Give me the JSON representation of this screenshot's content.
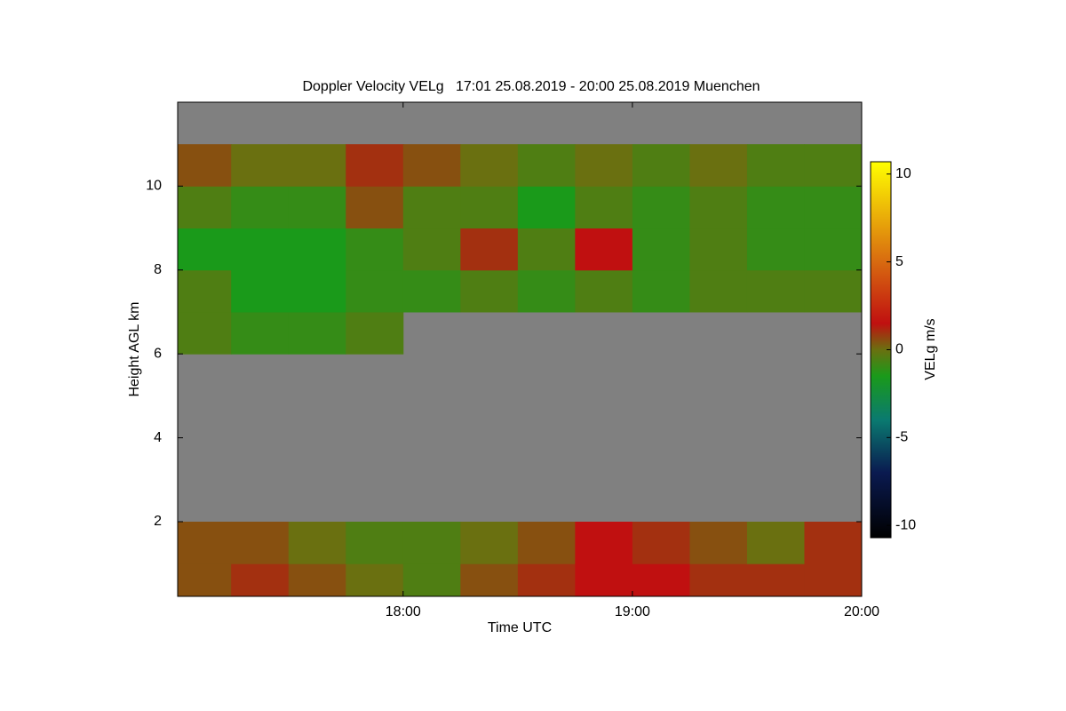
{
  "chart_data": {
    "type": "heatmap",
    "title": "Doppler Velocity VELg   17:01 25.08.2019 - 20:00 25.08.2019 Muenchen",
    "x_label": "Time UTC",
    "y_label": "Height AGL km",
    "colorbar_label": "VELg m/s",
    "x": [
      17.125,
      17.375,
      17.625,
      17.875,
      18.125,
      18.375,
      18.625,
      18.875,
      19.125,
      19.375,
      19.625,
      19.875
    ],
    "y": [
      0.5,
      1.5,
      2.5,
      3.5,
      4.5,
      5.5,
      6.5,
      7.5,
      8.5,
      9.5,
      10.5,
      11.5
    ],
    "z": [
      [
        0.5,
        1,
        0.5,
        0,
        -0.5,
        0.5,
        1,
        1.5,
        1.5,
        1,
        1,
        1
      ],
      [
        0.5,
        0.5,
        0,
        -0.5,
        -0.5,
        0,
        0.5,
        1.5,
        1,
        0.5,
        0,
        1
      ],
      [
        null,
        null,
        null,
        null,
        null,
        null,
        null,
        null,
        null,
        null,
        null,
        null
      ],
      [
        null,
        null,
        null,
        null,
        null,
        null,
        null,
        null,
        null,
        null,
        null,
        null
      ],
      [
        null,
        null,
        null,
        null,
        null,
        null,
        null,
        null,
        null,
        null,
        null,
        null
      ],
      [
        null,
        null,
        null,
        null,
        null,
        null,
        null,
        null,
        null,
        null,
        null,
        null
      ],
      [
        -0.5,
        -1,
        -1,
        -0.5,
        null,
        null,
        null,
        null,
        null,
        null,
        null,
        null
      ],
      [
        -0.5,
        -1.5,
        -1.5,
        -1,
        -1,
        -0.5,
        -1,
        -0.5,
        -1,
        -0.5,
        -0.5,
        -0.5
      ],
      [
        -1.5,
        -1.5,
        -1.5,
        -1,
        -0.5,
        1,
        -0.5,
        1.5,
        -1,
        -0.5,
        -1,
        -1
      ],
      [
        -0.5,
        -1,
        -1,
        0.5,
        -0.5,
        -0.5,
        -1.5,
        -0.5,
        -1,
        -0.5,
        -1,
        -1
      ],
      [
        0.5,
        0,
        0,
        1,
        0.5,
        0,
        -0.5,
        0,
        -0.5,
        0,
        -0.5,
        -0.5
      ],
      [
        null,
        null,
        null,
        null,
        null,
        null,
        null,
        null,
        null,
        null,
        null,
        null
      ]
    ],
    "missing_color": "#808080",
    "xlim": [
      17.0167,
      20.0
    ],
    "xticks": [
      {
        "value": 18,
        "label": "18:00"
      },
      {
        "value": 19,
        "label": "19:00"
      },
      {
        "value": 20,
        "label": "20:00"
      }
    ],
    "ylim": [
      0.22,
      12
    ],
    "yticks": [
      2,
      4,
      6,
      8,
      10
    ],
    "clim": [
      -10.7,
      10.7
    ],
    "cticks": [
      10,
      5,
      0,
      -5,
      -10
    ],
    "colorscale": [
      [
        -10.7,
        "#000000"
      ],
      [
        -7,
        "#0a1a50"
      ],
      [
        -4,
        "#0a7a70"
      ],
      [
        -1.5,
        "#1a9a1a"
      ],
      [
        0,
        "#6a7010"
      ],
      [
        1.5,
        "#c01010"
      ],
      [
        5,
        "#d86a10"
      ],
      [
        10.7,
        "#ffff00"
      ]
    ]
  }
}
